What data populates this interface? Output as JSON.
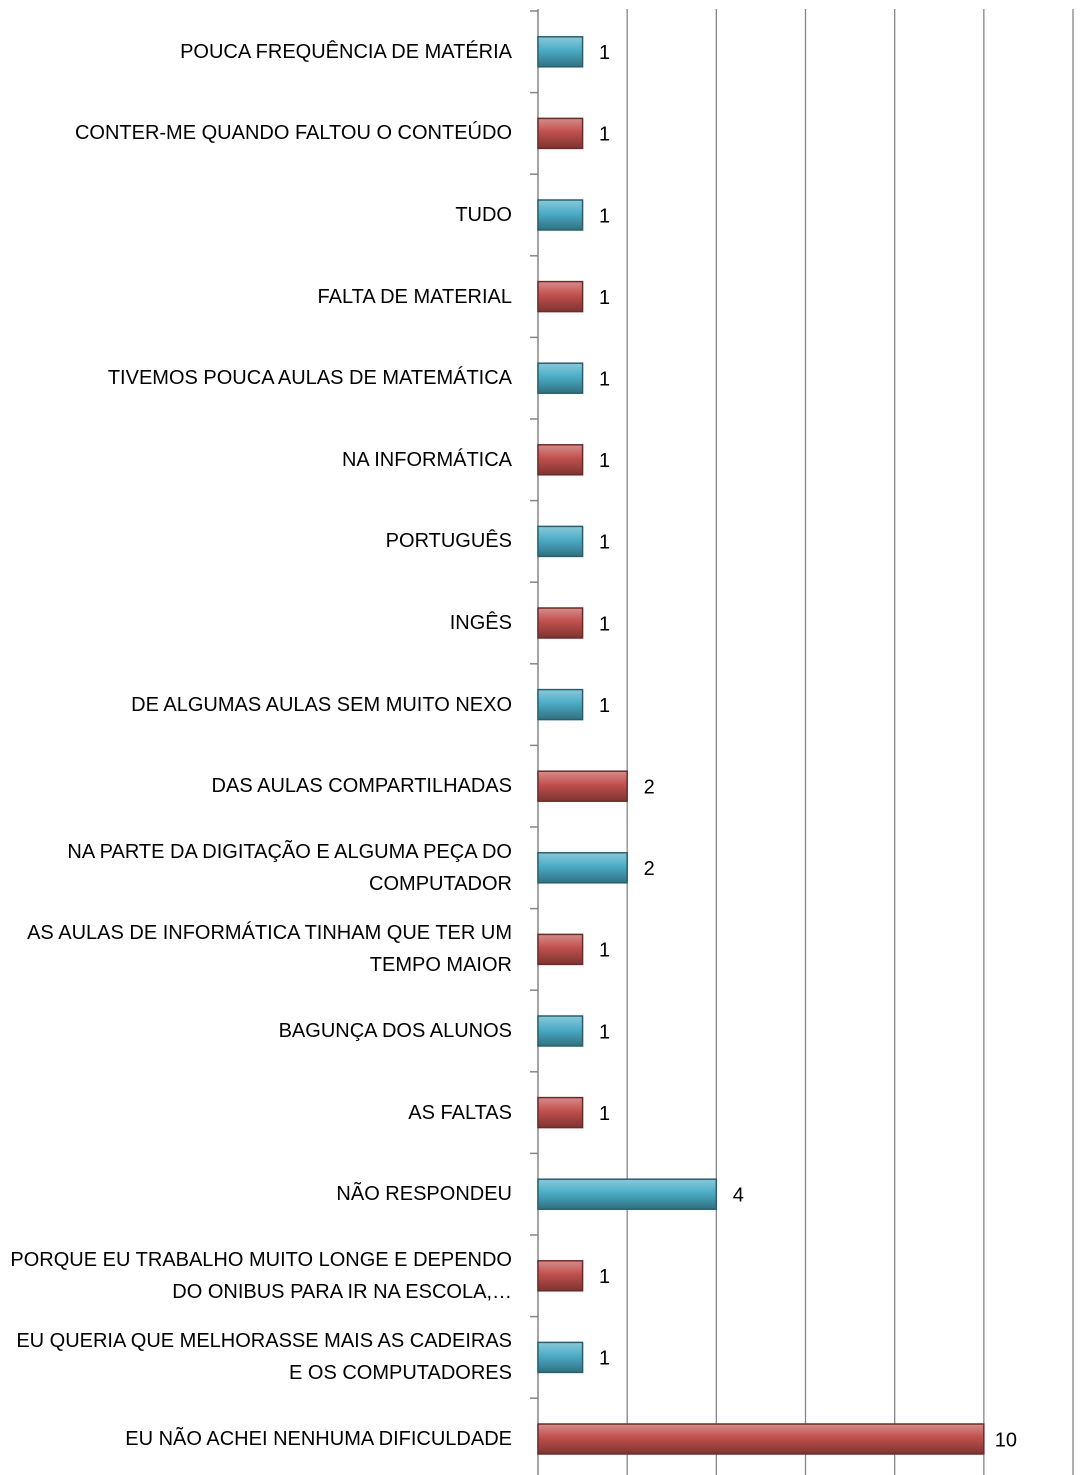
{
  "chart_data": {
    "type": "bar",
    "orientation": "horizontal",
    "categories": [
      "POUCA FREQUÊNCIA DE MATÉRIA",
      "CONTER-ME QUANDO FALTOU O CONTEÚDO",
      "TUDO",
      "FALTA DE MATERIAL",
      "TIVEMOS POUCA AULAS DE MATEMÁTICA",
      "NA INFORMÁTICA",
      "PORTUGUÊS",
      "INGÊS",
      "DE ALGUMAS AULAS SEM MUITO NEXO",
      "DAS AULAS COMPARTILHADAS",
      "NA PARTE DA DIGITAÇÃO E ALGUMA PEÇA DO COMPUTADOR",
      "AS AULAS DE INFORMÁTICA TINHAM QUE TER UM TEMPO MAIOR",
      "BAGUNÇA DOS ALUNOS",
      "AS FALTAS",
      "NÃO RESPONDEU",
      "PORQUE EU TRABALHO MUITO LONGE E DEPENDO DO ONIBUS PARA IR NA ESCOLA,…",
      "EU QUERIA QUE MELHORASSE MAIS AS CADEIRAS E OS COMPUTADORES",
      "EU NÃO ACHEI NENHUMA DIFICULDADE"
    ],
    "values": [
      1,
      1,
      1,
      1,
      1,
      1,
      1,
      1,
      1,
      2,
      2,
      1,
      1,
      1,
      4,
      1,
      1,
      10
    ],
    "colors": [
      "#4bacc6",
      "#c0504d",
      "#4bacc6",
      "#c0504d",
      "#4bacc6",
      "#c0504d",
      "#4bacc6",
      "#c0504d",
      "#4bacc6",
      "#c0504d",
      "#4bacc6",
      "#c0504d",
      "#4bacc6",
      "#c0504d",
      "#4bacc6",
      "#c0504d",
      "#4bacc6",
      "#c0504d"
    ],
    "xlim": [
      0,
      12
    ],
    "xticks": [
      0,
      2,
      4,
      6,
      8,
      10,
      12
    ],
    "grid": true
  }
}
